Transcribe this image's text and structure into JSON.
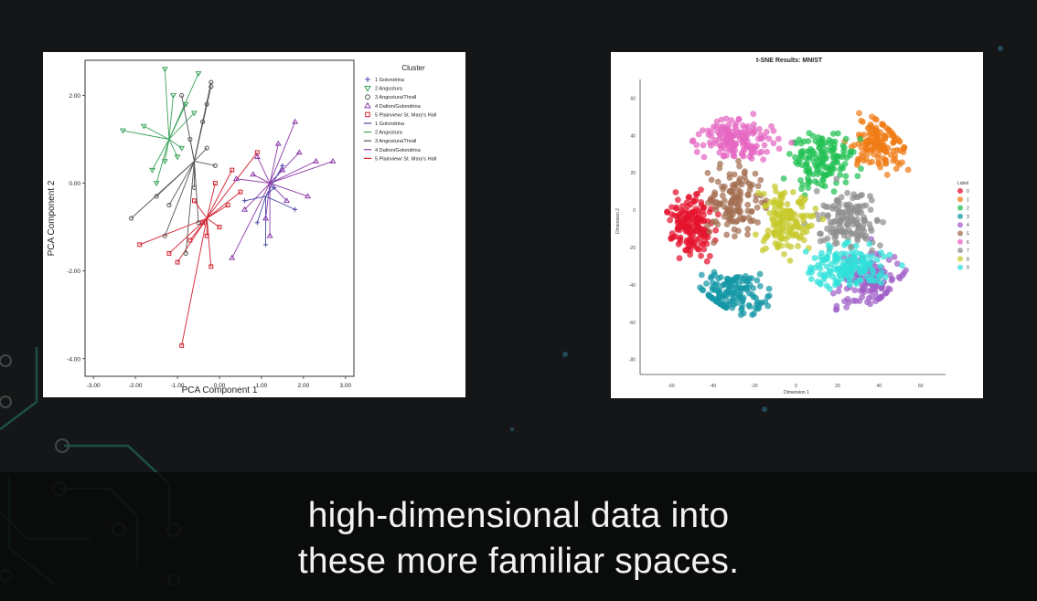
{
  "caption": {
    "line1": "high-dimensional data into",
    "line2": "these more familiar spaces."
  },
  "colors": {
    "background": "#151617",
    "circuit": "#1f5a52"
  },
  "chart_data": [
    {
      "type": "scatter",
      "title": "",
      "xlabel": "PCA Component 1",
      "ylabel": "PCA Component 2",
      "xlim": [
        -3.2,
        3.2
      ],
      "ylim": [
        -4.4,
        2.8
      ],
      "x_ticks": [
        "-3.00",
        "-2.00",
        "-1.00",
        "0.00",
        "1.00",
        "2.00",
        "3.00"
      ],
      "y_ticks": [
        "2.00",
        "0.00",
        "-2.00",
        "-4.00"
      ],
      "x_tick_values": [
        -3,
        -2,
        -1,
        0,
        1,
        2,
        3
      ],
      "y_tick_values": [
        2,
        0,
        -2,
        -4
      ],
      "legend_title": "Cluster",
      "legend_placement": "right",
      "legend": [
        {
          "label": "1 Golondrina",
          "color": "#4a4aa8",
          "marker": "plus"
        },
        {
          "label": "2 Angostura",
          "color": "#3aa35a",
          "marker": "triangle-down"
        },
        {
          "label": "3 Angostura/Thrall",
          "color": "#555555",
          "marker": "circle"
        },
        {
          "label": "4 Dalton/Golondrina",
          "color": "#8b3aa8",
          "marker": "triangle-up"
        },
        {
          "label": "5 Plainview/ St. Mary's Hall",
          "color": "#d0202e",
          "marker": "square"
        },
        {
          "label": "1 Golondrina",
          "color": "#4a4aa8",
          "marker": "line"
        },
        {
          "label": "2 Angostura",
          "color": "#3aa35a",
          "marker": "line"
        },
        {
          "label": "3 Angostura/Thrall",
          "color": "#555555",
          "marker": "line"
        },
        {
          "label": "4 Dalton/Golondrina",
          "color": "#8b3aa8",
          "marker": "line"
        },
        {
          "label": "5 Plainview/ St. Mary's Hall",
          "color": "#d0202e",
          "marker": "line"
        }
      ],
      "series": [
        {
          "color": "#3aa35a",
          "marker": "triangle-down",
          "centroid": [
            -1.2,
            1.0
          ],
          "x": [
            -1.3,
            -2.3,
            -0.5,
            -1.5,
            -1.0,
            -0.8,
            -1.8,
            -1.1,
            -0.6,
            -1.6,
            -1.3,
            -0.9
          ],
          "y": [
            2.6,
            1.2,
            2.5,
            0.0,
            0.6,
            1.8,
            1.3,
            2.0,
            1.6,
            0.3,
            0.5,
            0.8
          ]
        },
        {
          "color": "#555555",
          "marker": "circle",
          "centroid": [
            -0.6,
            0.5
          ],
          "x": [
            -2.1,
            -1.3,
            -0.2,
            -0.3,
            -0.4,
            -1.2,
            -0.5,
            -0.7,
            -0.1,
            -0.8,
            -0.9,
            -0.2,
            -0.6,
            -1.5,
            -0.3
          ],
          "y": [
            -0.8,
            -1.2,
            2.2,
            1.8,
            1.4,
            -0.5,
            -0.9,
            1.0,
            0.4,
            -1.6,
            2.0,
            2.3,
            -0.1,
            -0.3,
            0.8
          ]
        },
        {
          "color": "#d0202e",
          "marker": "square",
          "centroid": [
            -0.3,
            -0.8
          ],
          "x": [
            -1.9,
            -0.9,
            0.9,
            -1.0,
            -0.3,
            0.3,
            -0.6,
            0.2,
            -0.2,
            -0.7,
            0.5,
            -0.4,
            -1.2,
            -0.1,
            0.0
          ],
          "y": [
            -1.4,
            -3.7,
            0.7,
            -1.8,
            -1.2,
            0.3,
            -0.4,
            -0.5,
            -1.9,
            -1.3,
            -0.2,
            -0.9,
            -1.6,
            0.0,
            -1.0
          ]
        },
        {
          "color": "#8b3aa8",
          "marker": "triangle-up",
          "centroid": [
            1.2,
            0.0
          ],
          "x": [
            1.8,
            2.7,
            0.3,
            1.2,
            2.1,
            0.9,
            1.5,
            0.6,
            1.9,
            2.3,
            1.1,
            0.8,
            1.6,
            0.4,
            1.4
          ],
          "y": [
            1.4,
            0.5,
            -1.7,
            -1.2,
            -0.3,
            0.6,
            0.3,
            -0.6,
            0.7,
            0.5,
            -0.8,
            0.2,
            -0.4,
            0.1,
            0.9
          ]
        },
        {
          "color": "#4a4aa8",
          "marker": "plus",
          "centroid": [
            1.1,
            -0.3
          ],
          "x": [
            1.8,
            1.1,
            0.6,
            1.5,
            0.9,
            1.3
          ],
          "y": [
            -0.6,
            -1.4,
            -0.4,
            0.4,
            -0.9,
            -0.1
          ]
        }
      ]
    },
    {
      "type": "scatter",
      "title": "t-SNE Results: MNIST",
      "xlabel": "Dimension 1",
      "ylabel": "Dimension 2",
      "xlim": [
        -75,
        72
      ],
      "ylim": [
        -88,
        70
      ],
      "x_ticks": [
        "-60",
        "-40",
        "-20",
        "0",
        "20",
        "40",
        "60"
      ],
      "y_ticks": [
        "60",
        "40",
        "20",
        "0",
        "-20",
        "-40",
        "-60",
        "-80"
      ],
      "x_tick_values": [
        -60,
        -40,
        -20,
        0,
        20,
        40,
        60
      ],
      "y_tick_values": [
        60,
        40,
        20,
        0,
        -20,
        -40,
        -60,
        -80
      ],
      "legend_title": "Label",
      "legend_placement": "right",
      "legend": [
        "0",
        "1",
        "2",
        "3",
        "4",
        "5",
        "6",
        "7",
        "8",
        "9"
      ],
      "series": [
        {
          "name": "0",
          "color": "#e4122d",
          "center": [
            -50,
            -8
          ],
          "spread": [
            10,
            14
          ],
          "count": 160
        },
        {
          "name": "1",
          "color": "#f07b16",
          "center": [
            40,
            35
          ],
          "spread": [
            12,
            12
          ],
          "count": 140
        },
        {
          "name": "2",
          "color": "#22c155",
          "center": [
            12,
            26
          ],
          "spread": [
            14,
            14
          ],
          "count": 150
        },
        {
          "name": "3",
          "color": "#1597a6",
          "center": [
            -30,
            -45
          ],
          "spread": [
            14,
            12
          ],
          "count": 150
        },
        {
          "name": "4",
          "color": "#a060c8",
          "center": [
            35,
            -38
          ],
          "spread": [
            16,
            14
          ],
          "count": 140
        },
        {
          "name": "5",
          "color": "#a26e50",
          "center": [
            -28,
            5
          ],
          "spread": [
            12,
            16
          ],
          "count": 130
        },
        {
          "name": "6",
          "color": "#e567c2",
          "center": [
            -30,
            38
          ],
          "spread": [
            18,
            10
          ],
          "count": 150
        },
        {
          "name": "7",
          "color": "#8f8f8f",
          "center": [
            25,
            -5
          ],
          "spread": [
            14,
            14
          ],
          "count": 140
        },
        {
          "name": "8",
          "color": "#c6c92a",
          "center": [
            -5,
            -5
          ],
          "spread": [
            12,
            16
          ],
          "count": 140
        },
        {
          "name": "9",
          "color": "#2fe0da",
          "center": [
            25,
            -30
          ],
          "spread": [
            18,
            10
          ],
          "count": 150
        }
      ]
    }
  ]
}
